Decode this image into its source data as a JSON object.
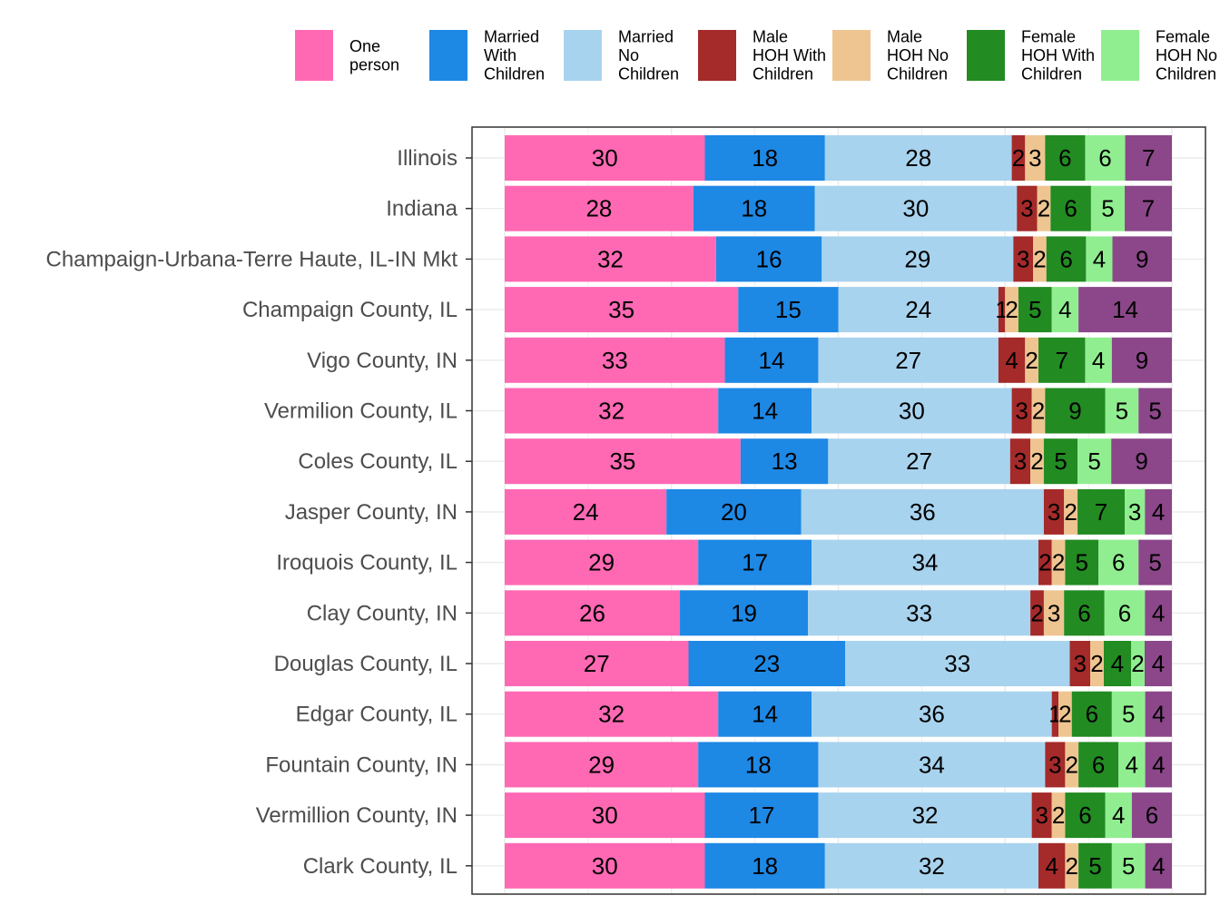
{
  "chart_data": {
    "type": "bar",
    "orientation": "horizontal",
    "stacked": true,
    "normalized_percent": true,
    "legend_position": "top",
    "grid": true,
    "xlim": [
      0,
      100
    ],
    "title": "",
    "xlabel": "",
    "ylabel": "",
    "categories": [
      "Illinois",
      "Indiana",
      "Champaign-Urbana-Terre Haute, IL-IN Mkt",
      "Champaign County, IL",
      "Vigo County, IN",
      "Vermilion County, IL",
      "Coles County, IL",
      "Jasper County, IN",
      "Iroquois County, IL",
      "Clay County, IN",
      "Douglas County, IL",
      "Edgar County, IL",
      "Fountain County, IN",
      "Vermillion County, IN",
      "Clark County, IL"
    ],
    "series": [
      {
        "name": [
          "One",
          "person"
        ],
        "color": "#FF69B4",
        "values": [
          30,
          28,
          32,
          35,
          33,
          32,
          35,
          24,
          29,
          26,
          27,
          32,
          29,
          30,
          30
        ]
      },
      {
        "name": [
          "Married",
          "With",
          "Children"
        ],
        "color": "#1E88E5",
        "values": [
          18,
          18,
          16,
          15,
          14,
          14,
          13,
          20,
          17,
          19,
          23,
          14,
          18,
          17,
          18
        ]
      },
      {
        "name": [
          "Married",
          "No",
          "Children"
        ],
        "color": "#A8D3EE",
        "values": [
          28,
          30,
          29,
          24,
          27,
          30,
          27,
          36,
          34,
          33,
          33,
          36,
          34,
          32,
          32
        ]
      },
      {
        "name": [
          "Male",
          "HOH With",
          "Children"
        ],
        "color": "#A52A2A",
        "values": [
          2,
          3,
          3,
          1,
          4,
          3,
          3,
          3,
          2,
          2,
          3,
          1,
          3,
          3,
          4
        ]
      },
      {
        "name": [
          "Male",
          "HOH No",
          "Children"
        ],
        "color": "#EEC591",
        "values": [
          3,
          2,
          2,
          2,
          2,
          2,
          2,
          2,
          2,
          3,
          2,
          2,
          2,
          2,
          2
        ]
      },
      {
        "name": [
          "Female",
          "HOH With",
          "Children"
        ],
        "color": "#228B22",
        "values": [
          6,
          6,
          6,
          5,
          7,
          9,
          5,
          7,
          5,
          6,
          4,
          6,
          6,
          6,
          5
        ]
      },
      {
        "name": [
          "Female",
          "HOH No",
          "Children"
        ],
        "color": "#90EE90",
        "values": [
          6,
          5,
          4,
          4,
          4,
          5,
          5,
          3,
          6,
          6,
          2,
          5,
          4,
          4,
          5
        ]
      },
      {
        "name": [],
        "color": "#8B4789",
        "values": [
          7,
          7,
          9,
          14,
          9,
          5,
          9,
          4,
          5,
          4,
          4,
          4,
          4,
          6,
          4
        ]
      }
    ]
  }
}
